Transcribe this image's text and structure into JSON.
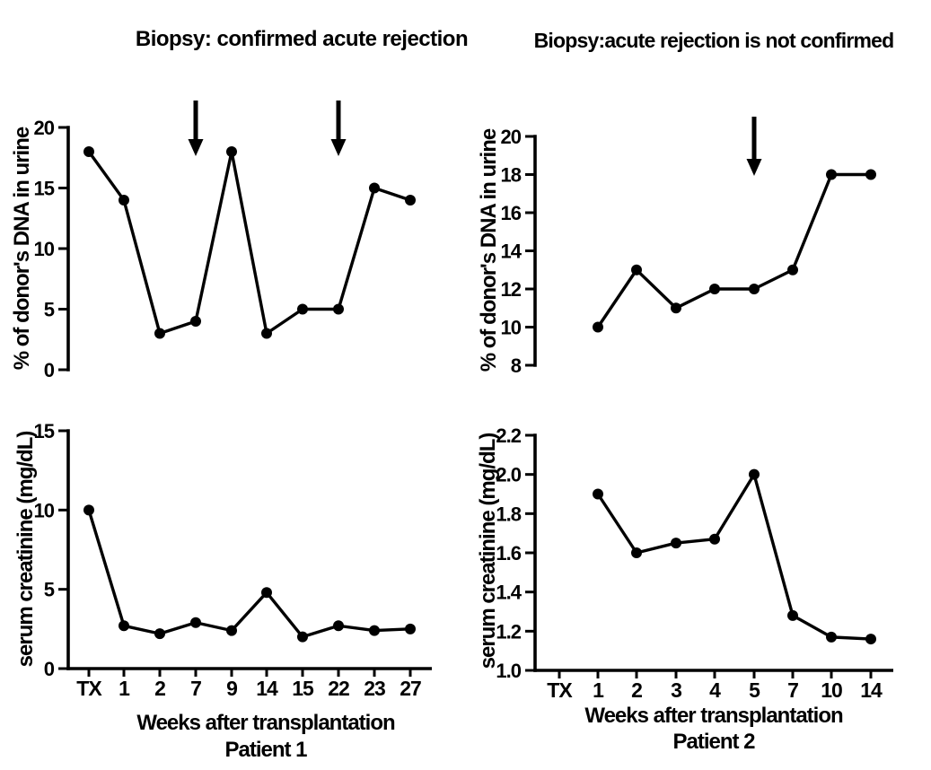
{
  "headers": {
    "left": "Biopsy: confirmed acute rejection",
    "right": "Biopsy:acute rejection is not confirmed"
  },
  "colors": {
    "foreground": "#000000",
    "background": "#ffffff"
  },
  "chart_data": [
    {
      "type": "line",
      "panel": "top-left",
      "ylabel": "% of donor's DNA in urine",
      "categories": [
        "TX",
        "1",
        "2",
        "7",
        "9",
        "14",
        "15",
        "22",
        "23",
        "27"
      ],
      "values": [
        18,
        14,
        3,
        4,
        18,
        3,
        5,
        5,
        15,
        14
      ],
      "ytick_labels": [
        "0",
        "5",
        "10",
        "15",
        "20"
      ],
      "ylim": [
        0,
        20
      ],
      "xaxis_visible": false,
      "grid": false,
      "arrows_at": [
        "7",
        "22"
      ]
    },
    {
      "type": "line",
      "panel": "top-right",
      "ylabel": "% of donor's DNA in urine",
      "categories": [
        "TX",
        "1",
        "2",
        "3",
        "4",
        "5",
        "7",
        "10",
        "14"
      ],
      "values": [
        null,
        10,
        13,
        11,
        12,
        12,
        13,
        18,
        18
      ],
      "ytick_labels": [
        "8",
        "10",
        "12",
        "14",
        "16",
        "18",
        "20"
      ],
      "ylim": [
        8,
        20
      ],
      "xaxis_visible": false,
      "grid": false,
      "arrows_at": [
        "5"
      ]
    },
    {
      "type": "line",
      "panel": "bottom-left",
      "ylabel": "serum creatinine (mg/dL)",
      "xlabel": "Weeks after transplantation",
      "patient_label": "Patient 1",
      "categories": [
        "TX",
        "1",
        "2",
        "7",
        "9",
        "14",
        "15",
        "22",
        "23",
        "27"
      ],
      "values": [
        10,
        2.7,
        2.2,
        2.9,
        2.4,
        4.8,
        2.0,
        2.7,
        2.4,
        2.5
      ],
      "ytick_labels": [
        "0",
        "5",
        "10",
        "15"
      ],
      "ylim": [
        0,
        15
      ],
      "xaxis_visible": true,
      "grid": false,
      "arrows_at": []
    },
    {
      "type": "line",
      "panel": "bottom-right",
      "ylabel": "serum creatinine (mg/dL)",
      "xlabel": "Weeks after transplantation",
      "patient_label": "Patient 2",
      "categories": [
        "TX",
        "1",
        "2",
        "3",
        "4",
        "5",
        "7",
        "10",
        "14"
      ],
      "values": [
        null,
        1.9,
        1.6,
        1.65,
        1.67,
        2.0,
        1.28,
        1.17,
        1.16
      ],
      "ytick_labels": [
        "1.0",
        "1.2",
        "1.4",
        "1.6",
        "1.8",
        "2.0",
        "2.2"
      ],
      "ylim": [
        1.0,
        2.2
      ],
      "xaxis_visible": true,
      "grid": false,
      "arrows_at": []
    }
  ]
}
